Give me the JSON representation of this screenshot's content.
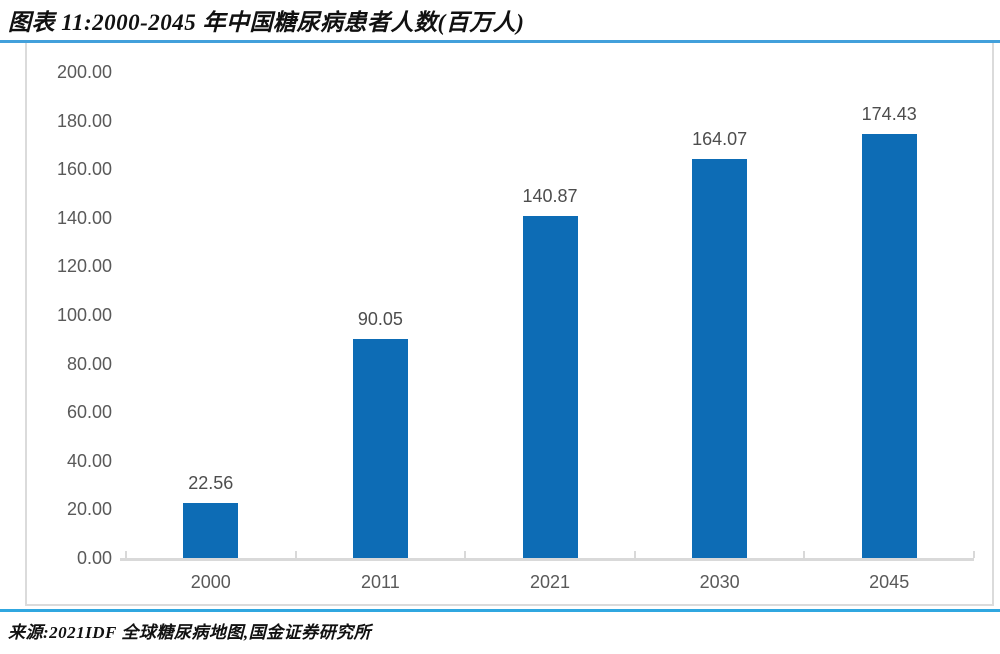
{
  "header": {
    "title": "图表 11:2000-2045 年中国糖尿病患者人数(百万人)"
  },
  "footer": {
    "source": "来源:2021IDF 全球糖尿病地图,国金证券研究所"
  },
  "colors": {
    "bar": "#0d6cb5",
    "rule_top": "#42a0db",
    "rule_bottom": "#30a7e0",
    "axis": "#d9d9d9",
    "tick_text": "#595959",
    "value_text": "#4d4d4d",
    "title_text": "#111111"
  },
  "chart_data": {
    "type": "bar",
    "title": "2000-2045 年中国糖尿病患者人数(百万人)",
    "categories": [
      "2000",
      "2011",
      "2021",
      "2030",
      "2045"
    ],
    "values": [
      22.56,
      90.05,
      140.87,
      164.07,
      174.43
    ],
    "value_labels": [
      "22.56",
      "90.05",
      "140.87",
      "164.07",
      "174.43"
    ],
    "xlabel": "",
    "ylabel": "",
    "ylim": [
      0,
      200
    ],
    "y_ticks": [
      "0.00",
      "20.00",
      "40.00",
      "60.00",
      "80.00",
      "100.00",
      "120.00",
      "140.00",
      "160.00",
      "180.00",
      "200.00"
    ],
    "grid": false,
    "legend": "none",
    "unit": "百万人"
  }
}
